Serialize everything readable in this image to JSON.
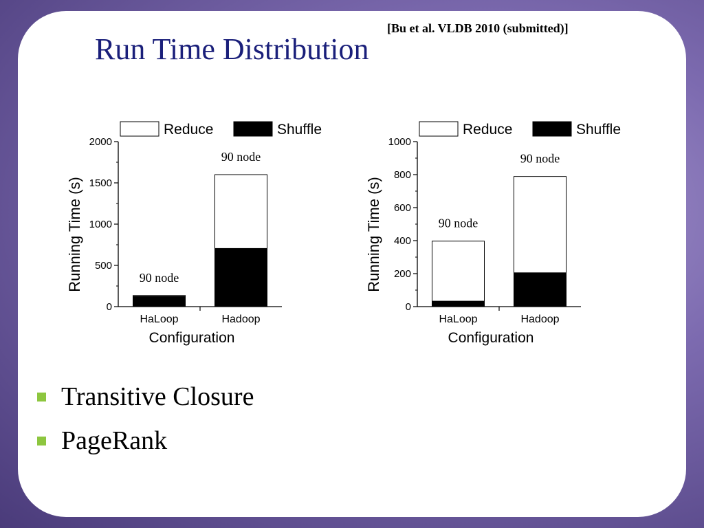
{
  "slide": {
    "citation": "[Bu et al. VLDB 2010 (submitted)]",
    "title": "Run Time Distribution",
    "bullets": [
      "Transitive Closure",
      "PageRank"
    ],
    "bullet_color": "#8dc63f",
    "title_color": "#1a1f7a"
  },
  "chart_data": [
    {
      "type": "bar",
      "stacked": true,
      "categories": [
        "HaLoop",
        "Hadoop"
      ],
      "series": [
        {
          "name": "Shuffle",
          "values": [
            125,
            705
          ],
          "color": "#000000"
        },
        {
          "name": "Reduce",
          "values": [
            10,
            895
          ],
          "color": "#ffffff"
        }
      ],
      "annotations": [
        "90 node",
        "90 node"
      ],
      "xlabel": "Configuration",
      "ylabel": "Running Time (s)",
      "ylim": [
        0,
        2000
      ],
      "yticks": [
        0,
        500,
        1000,
        1500,
        2000
      ],
      "legend": "top",
      "grid": false
    },
    {
      "type": "bar",
      "stacked": true,
      "categories": [
        "HaLoop",
        "Hadoop"
      ],
      "series": [
        {
          "name": "Shuffle",
          "values": [
            33,
            205
          ],
          "color": "#000000"
        },
        {
          "name": "Reduce",
          "values": [
            364,
            584
          ],
          "color": "#ffffff"
        }
      ],
      "annotations": [
        "90 node",
        "90 node"
      ],
      "xlabel": "Configuration",
      "ylabel": "Running Time (s)",
      "ylim": [
        0,
        1000
      ],
      "yticks": [
        0,
        200,
        400,
        600,
        800,
        1000
      ],
      "legend": "top",
      "grid": false
    }
  ]
}
